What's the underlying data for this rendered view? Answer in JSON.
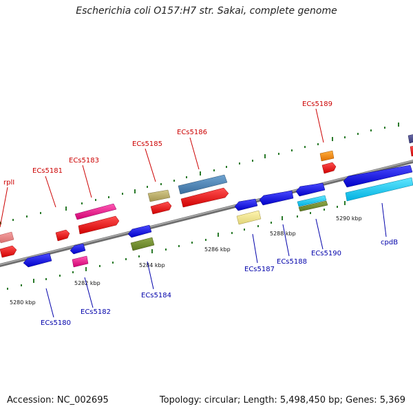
{
  "title": "Escherichia coli O157:H7 str. Sakai, complete genome",
  "footer": {
    "accession": "Accession: NC_002695",
    "summary": "Topology: circular; Length: 5,498,450 bp; Genes: 5,369"
  },
  "colors": {
    "forward_label": "#cc0000",
    "reverse_label": "#0000aa",
    "backbone": "#808080",
    "ticks": "#2a7a2a"
  },
  "scale": {
    "unit": "kbp",
    "labels": [
      "5280 kbp",
      "5282 kbp",
      "5284 kbp",
      "5286 kbp",
      "5288 kbp",
      "5290 kbp"
    ]
  },
  "genes": [
    {
      "label": "rplI",
      "strand": "+",
      "color": "#e60000"
    },
    {
      "label": "ECs5181",
      "strand": "+",
      "color": "#e60000"
    },
    {
      "label": "ECs5183",
      "strand": "+",
      "color": "#e6007a"
    },
    {
      "label": "ECs5185",
      "strand": "+",
      "color": "#b5a96a"
    },
    {
      "label": "ECs5186",
      "strand": "+",
      "color": "#4a86b8"
    },
    {
      "label": "ECs5189",
      "strand": "+",
      "color": "#ff8c00"
    },
    {
      "label": "ECs5180",
      "strand": "-",
      "color": "#1010e0"
    },
    {
      "label": "ECs5182",
      "strand": "-",
      "color": "#1010e0"
    },
    {
      "label": "ECs5184",
      "strand": "-",
      "color": "#1010e0"
    },
    {
      "label": "ECs5187",
      "strand": "-",
      "color": "#1010e0"
    },
    {
      "label": "ECs5188",
      "strand": "-",
      "color": "#1010e0"
    },
    {
      "label": "ECs5190",
      "strand": "-",
      "color": "#1010e0"
    },
    {
      "label": "cpdB",
      "strand": "-",
      "color": "#1010e0"
    }
  ]
}
